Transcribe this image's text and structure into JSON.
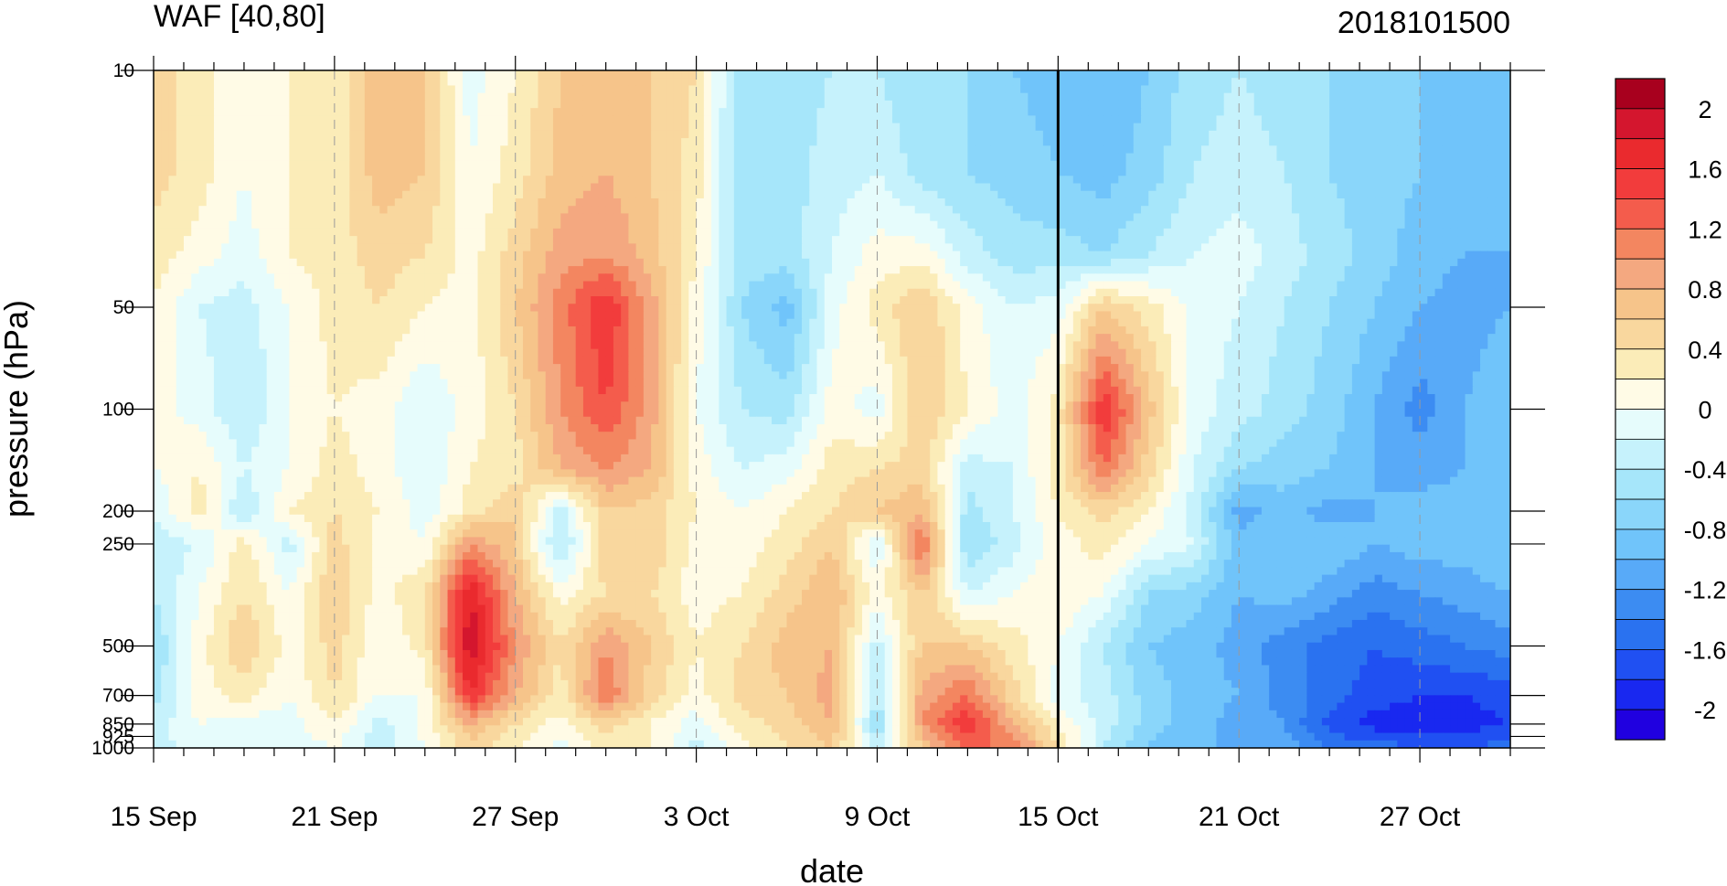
{
  "chart_data": {
    "type": "heatmap",
    "title": "WAF [40,80]",
    "subtitle": "2018101500",
    "xlabel": "date",
    "ylabel": "pressure (hPa)",
    "x_ticks": [
      "15 Sep",
      "21 Sep",
      "27 Sep",
      "3 Oct",
      "9 Oct",
      "15 Oct",
      "21 Oct",
      "27 Oct"
    ],
    "x_tick_days": [
      0,
      6,
      12,
      18,
      24,
      30,
      36,
      42
    ],
    "x_range_days": [
      0,
      45
    ],
    "y_ticks": [
      10,
      50,
      100,
      200,
      250,
      500,
      700,
      850,
      925,
      1000
    ],
    "y_scale": "log",
    "y_reversed": true,
    "ylim": [
      10,
      1000
    ],
    "current_date_marker": "15 Oct",
    "colorbar_labels": [
      "2",
      "1.6",
      "1.2",
      "0.8",
      "0.4",
      "0",
      "-0.4",
      "-0.8",
      "-1.2",
      "-1.6",
      "-2"
    ],
    "levels": [
      -2.2,
      -2.0,
      -1.8,
      -1.6,
      -1.4,
      -1.2,
      -1.0,
      -0.8,
      -0.6,
      -0.4,
      -0.2,
      0.0,
      0.2,
      0.4,
      0.6,
      0.8,
      1.0,
      1.2,
      1.4,
      1.6,
      1.8,
      2.0,
      2.2
    ],
    "colors": [
      "#2000e0",
      "#1928f0",
      "#2050f2",
      "#2a72f0",
      "#3c8cf2",
      "#58aaf8",
      "#70c4fa",
      "#8ad6fa",
      "#a6e6fa",
      "#c6f2fc",
      "#e6fcfc",
      "#fffbe6",
      "#fbecb8",
      "#f9d79e",
      "#f6c48a",
      "#f4a880",
      "#f38660",
      "#f45c4c",
      "#f23c3c",
      "#ea2a2e",
      "#d4162e",
      "#a8001e"
    ],
    "field": {
      "x_days": [
        0,
        1.5,
        3,
        4.5,
        6,
        7.5,
        9,
        10.5,
        12,
        13.5,
        15,
        16.5,
        18,
        19.5,
        21,
        22.5,
        24,
        25.5,
        27,
        28.5,
        30,
        31.5,
        33,
        34.5,
        36,
        37.5,
        39,
        40.5,
        42,
        43.5,
        45
      ],
      "y_hpa": [
        10,
        20,
        35,
        50,
        100,
        150,
        200,
        250,
        350,
        500,
        700,
        850,
        1000
      ],
      "values": [
        [
          0.5,
          0.3,
          0.0,
          0.2,
          0.2,
          0.8,
          0.6,
          -0.1,
          0.2,
          0.6,
          0.8,
          0.6,
          0.4,
          -0.6,
          -0.5,
          -0.4,
          -0.4,
          -0.6,
          -0.6,
          -0.8,
          -0.9,
          -1.0,
          -0.8,
          -0.5,
          -0.4,
          -0.5,
          -0.6,
          -0.7,
          -0.8,
          -0.8,
          -0.8
        ],
        [
          0.5,
          0.3,
          0.0,
          0.2,
          0.3,
          0.7,
          0.6,
          0.0,
          0.3,
          0.7,
          0.8,
          0.6,
          0.3,
          -0.6,
          -0.5,
          -0.3,
          -0.2,
          -0.5,
          -0.6,
          -0.7,
          -0.8,
          -0.9,
          -0.7,
          -0.4,
          -0.3,
          -0.4,
          -0.6,
          -0.7,
          -0.8,
          -0.9,
          -0.9
        ],
        [
          0.3,
          0.1,
          -0.1,
          0.2,
          0.3,
          0.5,
          0.4,
          0.1,
          0.5,
          0.9,
          1.0,
          0.7,
          0.2,
          -0.5,
          -0.5,
          -0.2,
          0.1,
          0.1,
          -0.3,
          -0.5,
          -0.5,
          -0.6,
          -0.4,
          -0.2,
          -0.1,
          -0.3,
          -0.5,
          -0.7,
          -0.9,
          -1.0,
          -1.0
        ],
        [
          0.2,
          -0.2,
          -0.3,
          0.0,
          0.3,
          0.4,
          0.2,
          0.1,
          0.6,
          1.1,
          1.6,
          0.9,
          0.1,
          -0.6,
          -0.9,
          -0.1,
          0.3,
          0.6,
          0.1,
          -0.2,
          -0.1,
          0.6,
          0.3,
          -0.1,
          -0.2,
          -0.4,
          -0.6,
          -0.8,
          -1.0,
          -1.1,
          -1.0
        ],
        [
          0.1,
          -0.1,
          -0.4,
          0.0,
          0.2,
          0.1,
          -0.2,
          0.1,
          0.4,
          1.0,
          1.4,
          0.9,
          0.0,
          -0.4,
          -0.5,
          0.1,
          -0.1,
          0.6,
          0.2,
          -0.1,
          0.3,
          1.6,
          0.7,
          -0.1,
          -0.3,
          -0.5,
          -0.7,
          -1.0,
          -1.3,
          -1.0,
          -0.8
        ],
        [
          0.0,
          0.2,
          -0.2,
          0.0,
          0.3,
          0.1,
          -0.2,
          0.2,
          0.3,
          0.8,
          1.0,
          0.8,
          0.1,
          -0.2,
          -0.1,
          0.3,
          0.4,
          0.5,
          -0.3,
          -0.2,
          0.3,
          1.2,
          0.5,
          -0.2,
          -0.6,
          -0.7,
          -0.8,
          -1.0,
          -1.1,
          -1.0,
          -0.9
        ],
        [
          -0.2,
          0.3,
          -0.4,
          0.2,
          0.4,
          0.2,
          -0.1,
          0.3,
          0.6,
          -0.3,
          0.6,
          0.5,
          0.2,
          0.0,
          0.2,
          0.4,
          0.6,
          0.8,
          -0.5,
          -0.2,
          0.2,
          0.5,
          0.2,
          -0.3,
          -1.1,
          -0.9,
          -1.1,
          -1.0,
          -0.9,
          -0.9,
          -0.8
        ],
        [
          -0.3,
          -0.2,
          0.3,
          -0.3,
          0.5,
          0.1,
          0.0,
          1.0,
          0.6,
          -0.5,
          0.6,
          0.6,
          0.1,
          0.1,
          0.3,
          0.6,
          -0.2,
          1.3,
          -0.6,
          -0.3,
          0.1,
          0.3,
          0.0,
          -0.2,
          -0.9,
          -0.9,
          -0.8,
          -1.0,
          -0.9,
          -0.9,
          -0.8
        ],
        [
          -0.4,
          0.0,
          0.4,
          0.0,
          0.6,
          0.1,
          0.4,
          1.8,
          0.8,
          0.1,
          0.4,
          0.4,
          0.1,
          0.2,
          0.5,
          0.8,
          0.1,
          0.6,
          -0.2,
          0.0,
          0.2,
          0.0,
          -0.6,
          -0.7,
          -1.0,
          -0.9,
          -1.1,
          -1.3,
          -1.2,
          -1.1,
          -1.0
        ],
        [
          -0.6,
          0.1,
          0.6,
          0.1,
          0.5,
          0.0,
          0.3,
          2.0,
          1.0,
          0.4,
          1.0,
          0.6,
          0.2,
          0.4,
          0.7,
          0.8,
          -0.3,
          0.6,
          0.6,
          0.3,
          0.0,
          -0.4,
          -0.8,
          -0.9,
          -1.1,
          -1.3,
          -1.5,
          -1.6,
          -1.5,
          -1.4,
          -1.3
        ],
        [
          -0.5,
          0.1,
          0.3,
          0.0,
          0.4,
          0.0,
          0.0,
          1.6,
          0.8,
          0.3,
          1.2,
          0.5,
          0.1,
          0.5,
          0.6,
          0.9,
          -0.4,
          0.9,
          1.2,
          0.5,
          -0.1,
          -0.3,
          -0.7,
          -0.9,
          -1.0,
          -1.3,
          -1.5,
          -1.7,
          -1.8,
          -1.8,
          -1.7
        ],
        [
          -0.3,
          0.0,
          -0.1,
          -0.1,
          0.2,
          -0.3,
          0.1,
          0.8,
          0.4,
          0.1,
          0.5,
          0.2,
          -0.1,
          0.3,
          0.5,
          0.8,
          -0.6,
          1.0,
          1.6,
          0.8,
          0.2,
          -0.3,
          -0.7,
          -0.9,
          -1.1,
          -1.2,
          -1.7,
          -1.9,
          -1.9,
          -1.9,
          -1.8
        ],
        [
          -0.3,
          -0.1,
          -0.2,
          -0.1,
          0.0,
          -0.3,
          0.0,
          0.5,
          0.2,
          -0.1,
          0.3,
          0.2,
          -0.3,
          0.1,
          0.4,
          0.6,
          -0.3,
          0.6,
          1.2,
          1.2,
          0.4,
          -0.4,
          -0.8,
          -1.0,
          -1.0,
          -1.1,
          -1.4,
          -1.5,
          -1.6,
          -1.6,
          -1.5
        ]
      ]
    }
  }
}
